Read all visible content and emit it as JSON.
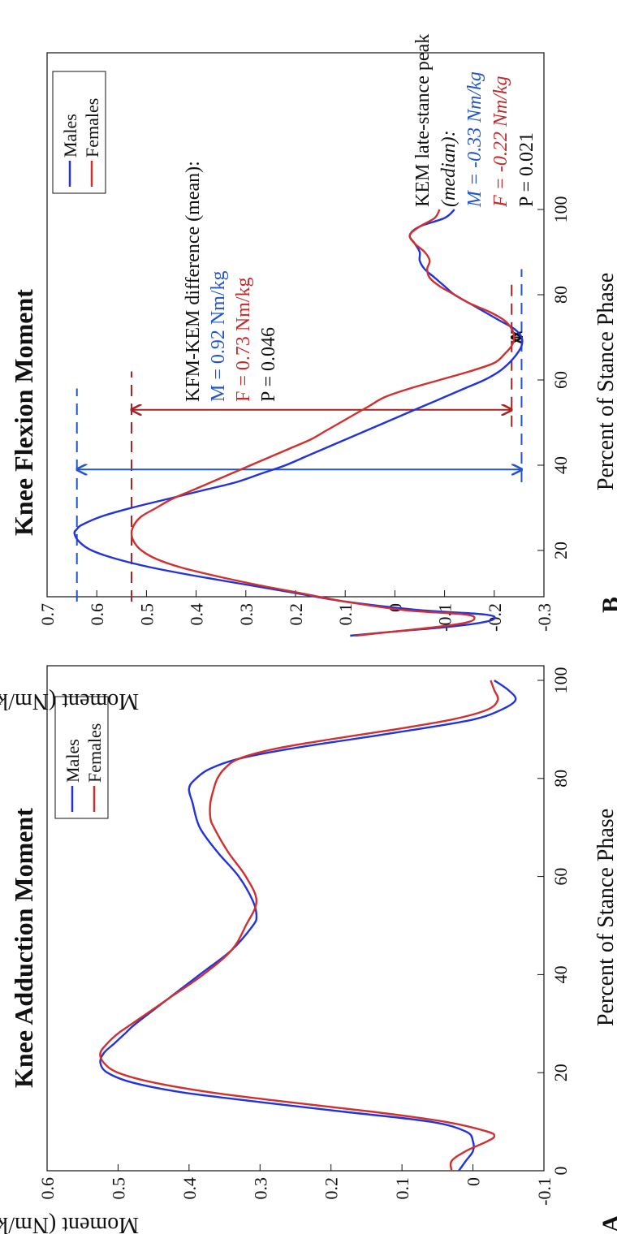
{
  "colors": {
    "males": "#2233dd",
    "females": "#d22f2f",
    "dash_m": "#2255cc",
    "dash_f": "#a82222",
    "black": "#111111"
  },
  "chart_data": [
    {
      "type": "line",
      "panel": "A",
      "title": "Knee Adduction Moment",
      "xlabel": "Percent of Stance Phase",
      "ylabel": "Moment (Nm/kg)",
      "xlim": [
        0,
        100
      ],
      "ylim": [
        -0.1,
        0.6
      ],
      "xticks": [
        "0",
        "20",
        "40",
        "60",
        "80",
        "100"
      ],
      "yticks": [
        "-0.1",
        "0",
        "0.1",
        "0.2",
        "0.3",
        "0.4",
        "0.5",
        "0.6"
      ],
      "legend": [
        "Males",
        "Females"
      ],
      "series": [
        {
          "name": "Males",
          "x": [
            0,
            2,
            4,
            6,
            8,
            10,
            12,
            14,
            16,
            18,
            20,
            22,
            24,
            26,
            28,
            30,
            35,
            40,
            45,
            50,
            52,
            55,
            60,
            65,
            70,
            75,
            78,
            80,
            82,
            84,
            86,
            88,
            90,
            92,
            94,
            96,
            98,
            100
          ],
          "y": [
            0.02,
            0.01,
            0.0,
            0.0,
            0.01,
            0.06,
            0.18,
            0.3,
            0.41,
            0.48,
            0.515,
            0.525,
            0.52,
            0.505,
            0.49,
            0.475,
            0.43,
            0.385,
            0.34,
            0.31,
            0.305,
            0.31,
            0.33,
            0.36,
            0.385,
            0.395,
            0.4,
            0.39,
            0.37,
            0.33,
            0.26,
            0.17,
            0.08,
            0.0,
            -0.04,
            -0.06,
            -0.05,
            -0.03
          ]
        },
        {
          "name": "Females",
          "x": [
            0,
            2,
            4,
            6,
            7,
            8,
            10,
            12,
            14,
            16,
            18,
            20,
            22,
            24,
            26,
            28,
            30,
            35,
            40,
            45,
            50,
            55,
            60,
            65,
            70,
            72,
            75,
            78,
            80,
            82,
            84,
            86,
            88,
            90,
            92,
            94,
            96,
            98,
            100
          ],
          "y": [
            0.03,
            0.03,
            0.01,
            -0.02,
            -0.03,
            -0.02,
            0.04,
            0.14,
            0.26,
            0.37,
            0.45,
            0.5,
            0.52,
            0.525,
            0.515,
            0.5,
            0.48,
            0.43,
            0.38,
            0.34,
            0.32,
            0.305,
            0.32,
            0.345,
            0.365,
            0.37,
            0.37,
            0.365,
            0.36,
            0.35,
            0.33,
            0.28,
            0.2,
            0.11,
            0.03,
            -0.02,
            -0.035,
            -0.03,
            -0.025
          ]
        }
      ]
    },
    {
      "type": "line",
      "panel": "B",
      "title": "Knee Flexion Moment",
      "xlabel": "Percent of Stance Phase",
      "ylabel": "Moment (Nm/kg)",
      "xlim": [
        0,
        100
      ],
      "ylim": [
        -0.3,
        0.7
      ],
      "xticks": [
        "20",
        "40",
        "60",
        "80",
        "100"
      ],
      "yticks": [
        "-0.3",
        "-0.2",
        "-0.1",
        "0",
        "0.1",
        "0.2",
        "0.3",
        "0.4",
        "0.5",
        "0.6",
        "0.7"
      ],
      "legend": [
        "Males",
        "Females"
      ],
      "series": [
        {
          "name": "Males",
          "x": [
            0,
            1,
            2,
            3,
            4,
            5,
            6,
            8,
            10,
            12,
            14,
            16,
            18,
            20,
            22,
            24,
            25,
            26,
            28,
            30,
            32,
            34,
            36,
            38,
            40,
            42,
            44,
            46,
            48,
            50,
            52,
            55,
            58,
            60,
            62,
            64,
            66,
            68,
            70,
            72,
            74,
            76,
            78,
            80,
            82,
            84,
            86,
            88,
            90,
            92,
            94,
            96,
            98,
            100
          ],
          "y": [
            0.09,
            0.0,
            -0.1,
            -0.17,
            -0.2,
            -0.18,
            -0.05,
            0.1,
            0.2,
            0.3,
            0.4,
            0.49,
            0.56,
            0.61,
            0.635,
            0.645,
            0.64,
            0.63,
            0.59,
            0.53,
            0.46,
            0.39,
            0.32,
            0.27,
            0.22,
            0.18,
            0.14,
            0.1,
            0.06,
            0.02,
            -0.02,
            -0.08,
            -0.14,
            -0.18,
            -0.21,
            -0.23,
            -0.245,
            -0.255,
            -0.255,
            -0.24,
            -0.21,
            -0.18,
            -0.15,
            -0.12,
            -0.1,
            -0.08,
            -0.06,
            -0.05,
            -0.05,
            -0.04,
            -0.03,
            -0.05,
            -0.1,
            -0.12
          ]
        },
        {
          "name": "Females",
          "x": [
            0,
            1,
            2,
            3,
            4,
            5,
            6,
            8,
            10,
            12,
            14,
            16,
            18,
            20,
            22,
            24,
            26,
            28,
            30,
            32,
            34,
            36,
            38,
            40,
            42,
            44,
            46,
            48,
            50,
            52,
            54,
            56,
            58,
            60,
            62,
            64,
            66,
            68,
            70,
            72,
            74,
            76,
            78,
            80,
            82,
            84,
            86,
            88,
            90,
            92,
            94,
            96,
            98,
            100
          ],
          "y": [
            0.08,
            0.0,
            -0.08,
            -0.14,
            -0.16,
            -0.14,
            -0.02,
            0.1,
            0.19,
            0.28,
            0.36,
            0.43,
            0.48,
            0.51,
            0.525,
            0.53,
            0.525,
            0.51,
            0.48,
            0.45,
            0.41,
            0.37,
            0.33,
            0.29,
            0.25,
            0.21,
            0.17,
            0.14,
            0.11,
            0.08,
            0.05,
            0.02,
            -0.03,
            -0.09,
            -0.15,
            -0.2,
            -0.22,
            -0.235,
            -0.24,
            -0.235,
            -0.22,
            -0.19,
            -0.15,
            -0.12,
            -0.09,
            -0.07,
            -0.065,
            -0.07,
            -0.06,
            -0.04,
            -0.03,
            -0.05,
            -0.08,
            -0.09
          ]
        }
      ],
      "annotations": {
        "kfm_title": "KFM-KEM difference (mean):",
        "kfm_m": "M = 0.92 Nm/kg",
        "kfm_f": "F = 0.73 Nm/kg",
        "kfm_p": "P = 0.046",
        "kem_title1": "KEM late-stance peak",
        "kem_title2": "(median):",
        "kem_m": "M = -0.33 Nm/kg",
        "kem_f": "F = -0.22 Nm/kg",
        "kem_p": "P = 0.021",
        "male_peak": 0.64,
        "male_trough": -0.255,
        "female_peak": 0.53,
        "female_trough": -0.235
      }
    }
  ]
}
